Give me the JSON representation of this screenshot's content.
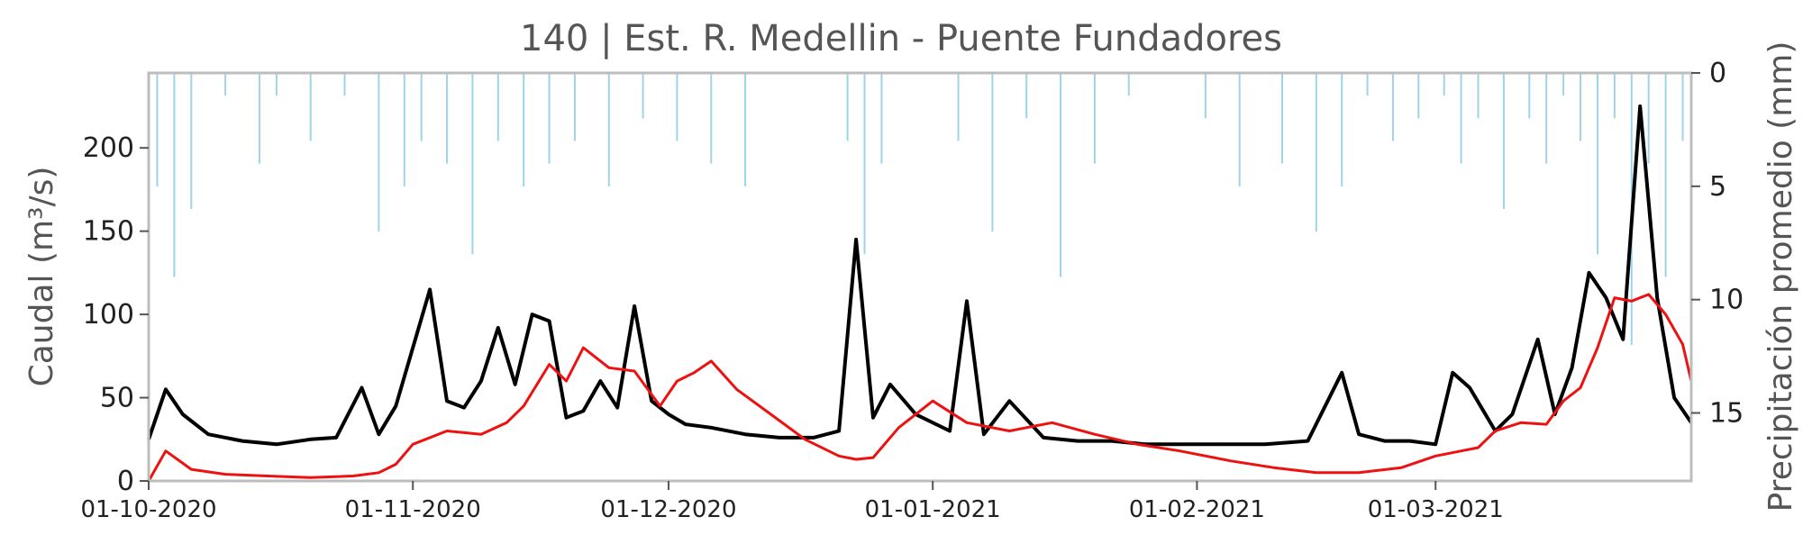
{
  "chart_data": {
    "type": "line",
    "title": "140 | Est. R. Medellin - Puente Fundadores",
    "ylabel_left": "Caudal (m³/s)",
    "ylabel_right": "Precipitación promedio (mm)",
    "x_range": [
      "2020-10-01",
      "2021-03-31"
    ],
    "ylim_left": [
      0,
      245
    ],
    "ylim_right": [
      18,
      0
    ],
    "left_ticks": [
      0,
      50,
      100,
      150,
      200
    ],
    "right_ticks": [
      0,
      5,
      10,
      15
    ],
    "x_ticks": [
      {
        "date": "2020-10-01",
        "label": "01-10-2020"
      },
      {
        "date": "2020-11-01",
        "label": "01-11-2020"
      },
      {
        "date": "2020-12-01",
        "label": "01-12-2020"
      },
      {
        "date": "2021-01-01",
        "label": "01-01-2021"
      },
      {
        "date": "2021-02-01",
        "label": "01-02-2021"
      },
      {
        "date": "2021-03-01",
        "label": "01-03-2021"
      }
    ],
    "grid": false,
    "colors": {
      "observed": "#000000",
      "simulated": "#ee1111",
      "precipitation": "#9fd3ea",
      "frame": "#bdbdbd"
    },
    "series": [
      {
        "kind": "line",
        "color": "#000000",
        "x": [
          "2020-10-01",
          "2020-10-03",
          "2020-10-05",
          "2020-10-08",
          "2020-10-12",
          "2020-10-16",
          "2020-10-20",
          "2020-10-23",
          "2020-10-26",
          "2020-10-28",
          "2020-10-30",
          "2020-11-01",
          "2020-11-03",
          "2020-11-05",
          "2020-11-07",
          "2020-11-09",
          "2020-11-11",
          "2020-11-13",
          "2020-11-15",
          "2020-11-17",
          "2020-11-19",
          "2020-11-21",
          "2020-11-23",
          "2020-11-25",
          "2020-11-27",
          "2020-11-29",
          "2020-12-01",
          "2020-12-03",
          "2020-12-06",
          "2020-12-10",
          "2020-12-14",
          "2020-12-18",
          "2020-12-21",
          "2020-12-23",
          "2020-12-25",
          "2020-12-27",
          "2020-12-30",
          "2021-01-03",
          "2021-01-05",
          "2021-01-07",
          "2021-01-10",
          "2021-01-14",
          "2021-01-18",
          "2021-01-22",
          "2021-01-26",
          "2021-01-30",
          "2021-02-04",
          "2021-02-09",
          "2021-02-14",
          "2021-02-18",
          "2021-02-20",
          "2021-02-23",
          "2021-02-26",
          "2021-03-01",
          "2021-03-03",
          "2021-03-05",
          "2021-03-08",
          "2021-03-10",
          "2021-03-13",
          "2021-03-15",
          "2021-03-17",
          "2021-03-19",
          "2021-03-21",
          "2021-03-23",
          "2021-03-25",
          "2021-03-27",
          "2021-03-29",
          "2021-03-31"
        ],
        "y": [
          25,
          55,
          40,
          28,
          24,
          22,
          25,
          26,
          56,
          28,
          45,
          80,
          115,
          48,
          44,
          60,
          92,
          58,
          100,
          96,
          38,
          42,
          60,
          44,
          105,
          48,
          40,
          34,
          32,
          28,
          26,
          26,
          30,
          145,
          38,
          58,
          40,
          30,
          108,
          28,
          48,
          26,
          24,
          24,
          22,
          22,
          22,
          22,
          24,
          65,
          28,
          24,
          24,
          22,
          65,
          56,
          30,
          40,
          85,
          40,
          68,
          125,
          110,
          85,
          225,
          110,
          50,
          35
        ]
      },
      {
        "kind": "line",
        "color": "#ee1111",
        "x": [
          "2020-10-01",
          "2020-10-03",
          "2020-10-06",
          "2020-10-10",
          "2020-10-15",
          "2020-10-20",
          "2020-10-25",
          "2020-10-28",
          "2020-10-30",
          "2020-11-01",
          "2020-11-05",
          "2020-11-09",
          "2020-11-12",
          "2020-11-14",
          "2020-11-17",
          "2020-11-19",
          "2020-11-21",
          "2020-11-24",
          "2020-11-27",
          "2020-11-30",
          "2020-12-02",
          "2020-12-04",
          "2020-12-06",
          "2020-12-09",
          "2020-12-13",
          "2020-12-17",
          "2020-12-21",
          "2020-12-23",
          "2020-12-25",
          "2020-12-28",
          "2021-01-01",
          "2021-01-05",
          "2021-01-10",
          "2021-01-15",
          "2021-01-20",
          "2021-01-25",
          "2021-01-30",
          "2021-02-05",
          "2021-02-10",
          "2021-02-15",
          "2021-02-20",
          "2021-02-25",
          "2021-03-01",
          "2021-03-04",
          "2021-03-06",
          "2021-03-08",
          "2021-03-11",
          "2021-03-14",
          "2021-03-16",
          "2021-03-18",
          "2021-03-20",
          "2021-03-22",
          "2021-03-24",
          "2021-03-26",
          "2021-03-28",
          "2021-03-30",
          "2021-03-31"
        ],
        "y": [
          0,
          18,
          7,
          4,
          3,
          2,
          3,
          5,
          10,
          22,
          30,
          28,
          35,
          45,
          70,
          60,
          80,
          68,
          66,
          45,
          60,
          65,
          72,
          55,
          40,
          25,
          15,
          13,
          14,
          32,
          48,
          35,
          30,
          35,
          28,
          22,
          18,
          12,
          8,
          5,
          5,
          8,
          15,
          18,
          20,
          30,
          35,
          34,
          48,
          56,
          80,
          110,
          108,
          112,
          100,
          82,
          60
        ]
      }
    ],
    "precipitation": {
      "x": [
        "2020-10-02",
        "2020-10-04",
        "2020-10-06",
        "2020-10-10",
        "2020-10-14",
        "2020-10-16",
        "2020-10-20",
        "2020-10-24",
        "2020-10-28",
        "2020-10-31",
        "2020-11-02",
        "2020-11-05",
        "2020-11-08",
        "2020-11-11",
        "2020-11-14",
        "2020-11-17",
        "2020-11-20",
        "2020-11-24",
        "2020-11-28",
        "2020-12-02",
        "2020-12-06",
        "2020-12-10",
        "2020-12-22",
        "2020-12-24",
        "2020-12-26",
        "2021-01-04",
        "2021-01-08",
        "2021-01-12",
        "2021-01-16",
        "2021-01-20",
        "2021-01-24",
        "2021-02-02",
        "2021-02-06",
        "2021-02-11",
        "2021-02-15",
        "2021-02-18",
        "2021-02-21",
        "2021-02-24",
        "2021-02-27",
        "2021-03-02",
        "2021-03-04",
        "2021-03-06",
        "2021-03-09",
        "2021-03-12",
        "2021-03-14",
        "2021-03-16",
        "2021-03-18",
        "2021-03-20",
        "2021-03-22",
        "2021-03-24",
        "2021-03-26",
        "2021-03-28",
        "2021-03-30"
      ],
      "y": [
        5,
        9,
        6,
        1,
        4,
        1,
        3,
        1,
        7,
        5,
        3,
        4,
        8,
        3,
        5,
        4,
        3,
        5,
        2,
        3,
        4,
        5,
        3,
        8,
        4,
        3,
        7,
        2,
        9,
        4,
        1,
        2,
        5,
        4,
        7,
        5,
        1,
        3,
        2,
        1,
        4,
        2,
        6,
        2,
        4,
        1,
        3,
        8,
        2,
        12,
        4,
        9,
        3
      ]
    }
  }
}
